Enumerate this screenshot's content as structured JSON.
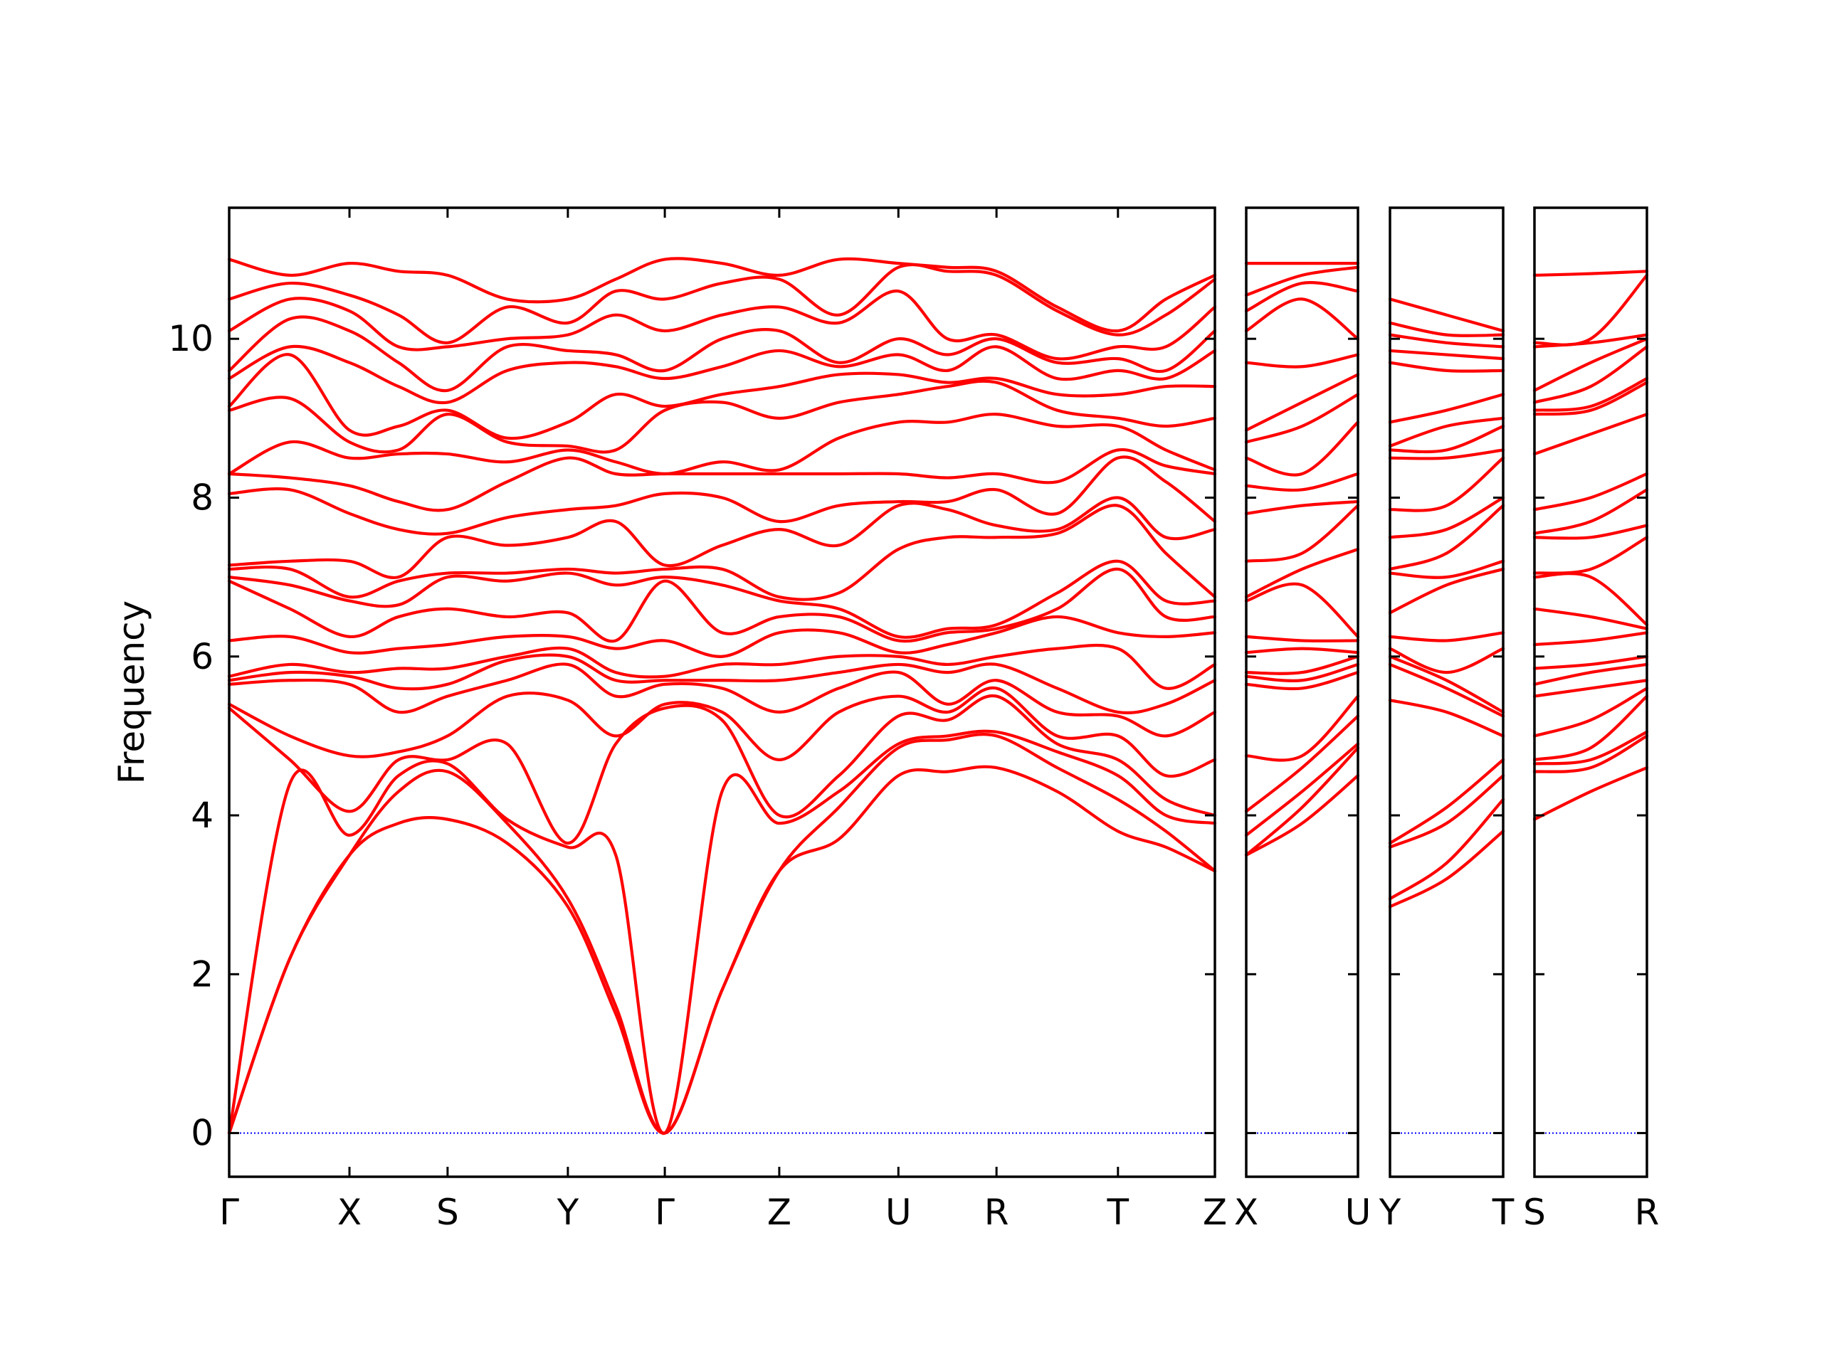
{
  "chart_data": [
    {
      "type": "line",
      "ylabel": "Frequency",
      "color": "#ff0000",
      "xlim": [
        0,
        8.44
      ],
      "ylim": [
        -0.55,
        11.65
      ],
      "yticks": [
        0,
        2,
        4,
        6,
        8,
        10
      ],
      "xticks": [
        {
          "value": 0,
          "label": "Γ"
        },
        {
          "value": 1.03,
          "label": "X"
        },
        {
          "value": 1.87,
          "label": "S"
        },
        {
          "value": 2.9,
          "label": "Y"
        },
        {
          "value": 3.73,
          "label": "Γ"
        },
        {
          "value": 4.71,
          "label": "Z"
        },
        {
          "value": 5.73,
          "label": "U"
        },
        {
          "value": 6.57,
          "label": "R"
        },
        {
          "value": 7.61,
          "label": "T"
        },
        {
          "value": 8.44,
          "label": "Z"
        }
      ],
      "zero_line": {
        "value": 0,
        "color": "#0000ff"
      },
      "x": [
        0,
        0.52,
        1.03,
        1.45,
        1.87,
        2.38,
        2.9,
        3.31,
        3.73,
        4.22,
        4.71,
        5.22,
        5.73,
        6.15,
        6.57,
        7.09,
        7.61,
        8.02,
        8.44
      ],
      "series": [
        {
          "values": [
            0,
            2.2,
            3.5,
            3.9,
            3.95,
            3.65,
            2.85,
            1.5,
            0,
            1.8,
            3.3,
            3.7,
            4.5,
            4.55,
            4.6,
            4.3,
            3.8,
            3.6,
            3.3
          ]
        },
        {
          "values": [
            0,
            2.2,
            3.5,
            4.3,
            4.55,
            3.9,
            2.95,
            1.6,
            0,
            1.8,
            3.3,
            4.1,
            4.85,
            4.95,
            5.0,
            4.6,
            4.2,
            3.8,
            3.3
          ]
        },
        {
          "values": [
            0,
            4.4,
            3.75,
            4.5,
            4.65,
            3.95,
            3.6,
            3.5,
            0,
            4.3,
            3.9,
            4.3,
            4.9,
            5.0,
            5.05,
            4.8,
            4.5,
            4.0,
            3.9
          ]
        },
        {
          "values": [
            5.35,
            4.7,
            4.05,
            4.7,
            4.7,
            4.9,
            3.65,
            4.9,
            5.35,
            5.2,
            4.0,
            4.5,
            5.25,
            5.2,
            5.5,
            4.9,
            4.7,
            4.2,
            4.0
          ]
        },
        {
          "values": [
            5.4,
            5.0,
            4.75,
            4.8,
            5.0,
            5.5,
            5.45,
            5.0,
            5.4,
            5.3,
            4.7,
            5.3,
            5.5,
            5.3,
            5.6,
            5.0,
            5.0,
            4.5,
            4.7
          ]
        },
        {
          "values": [
            5.65,
            5.7,
            5.65,
            5.3,
            5.5,
            5.7,
            5.9,
            5.5,
            5.65,
            5.6,
            5.3,
            5.6,
            5.8,
            5.4,
            5.7,
            5.3,
            5.25,
            5.0,
            5.3
          ]
        },
        {
          "values": [
            5.7,
            5.8,
            5.75,
            5.6,
            5.65,
            5.95,
            6.0,
            5.7,
            5.7,
            5.7,
            5.7,
            5.8,
            5.9,
            5.8,
            5.9,
            5.6,
            5.3,
            5.4,
            5.7
          ]
        },
        {
          "values": [
            5.75,
            5.9,
            5.8,
            5.85,
            5.85,
            6.0,
            6.1,
            5.8,
            5.75,
            5.9,
            5.9,
            6.0,
            6.0,
            5.9,
            6.0,
            6.1,
            6.1,
            5.6,
            5.9
          ]
        },
        {
          "values": [
            6.2,
            6.25,
            6.05,
            6.1,
            6.15,
            6.25,
            6.25,
            6.1,
            6.2,
            6.0,
            6.3,
            6.3,
            6.05,
            6.15,
            6.3,
            6.5,
            6.3,
            6.25,
            6.3
          ]
        },
        {
          "values": [
            6.95,
            6.6,
            6.25,
            6.5,
            6.6,
            6.5,
            6.55,
            6.2,
            6.95,
            6.3,
            6.5,
            6.5,
            6.2,
            6.3,
            6.35,
            6.6,
            7.1,
            6.5,
            6.5
          ]
        },
        {
          "values": [
            7.0,
            6.9,
            6.7,
            6.65,
            7.0,
            6.95,
            7.05,
            6.9,
            7.0,
            6.9,
            6.7,
            6.6,
            6.25,
            6.35,
            6.4,
            6.8,
            7.2,
            6.7,
            6.7
          ]
        },
        {
          "values": [
            7.1,
            7.1,
            6.75,
            6.95,
            7.05,
            7.05,
            7.1,
            7.05,
            7.1,
            7.1,
            6.75,
            6.8,
            7.35,
            7.5,
            7.5,
            7.55,
            7.9,
            7.3,
            6.75
          ]
        },
        {
          "values": [
            7.15,
            7.2,
            7.2,
            7.0,
            7.5,
            7.4,
            7.5,
            7.7,
            7.15,
            7.4,
            7.6,
            7.4,
            7.9,
            7.85,
            7.65,
            7.6,
            8.0,
            7.5,
            7.6
          ]
        },
        {
          "values": [
            8.05,
            8.1,
            7.8,
            7.6,
            7.55,
            7.75,
            7.85,
            7.9,
            8.05,
            8.0,
            7.7,
            7.9,
            7.95,
            7.95,
            8.1,
            7.8,
            8.5,
            8.2,
            7.7
          ]
        },
        {
          "values": [
            8.3,
            8.25,
            8.15,
            7.95,
            7.85,
            8.2,
            8.5,
            8.3,
            8.3,
            8.3,
            8.3,
            8.3,
            8.3,
            8.25,
            8.3,
            8.2,
            8.6,
            8.4,
            8.3
          ]
        },
        {
          "values": [
            8.3,
            8.7,
            8.5,
            8.55,
            8.55,
            8.45,
            8.6,
            8.45,
            8.3,
            8.45,
            8.35,
            8.75,
            8.95,
            8.95,
            9.05,
            8.9,
            8.9,
            8.6,
            8.35
          ]
        },
        {
          "values": [
            9.1,
            9.25,
            8.7,
            8.6,
            9.05,
            8.7,
            8.65,
            8.6,
            9.1,
            9.2,
            9.0,
            9.2,
            9.3,
            9.4,
            9.45,
            9.1,
            9.0,
            8.9,
            9.0
          ]
        },
        {
          "values": [
            9.15,
            9.8,
            8.85,
            8.9,
            9.1,
            8.75,
            8.95,
            9.3,
            9.15,
            9.3,
            9.4,
            9.55,
            9.55,
            9.45,
            9.5,
            9.3,
            9.3,
            9.4,
            9.4
          ]
        },
        {
          "values": [
            9.5,
            9.9,
            9.7,
            9.4,
            9.2,
            9.6,
            9.7,
            9.65,
            9.5,
            9.65,
            9.85,
            9.65,
            9.8,
            9.6,
            9.9,
            9.5,
            9.6,
            9.5,
            9.85
          ]
        },
        {
          "values": [
            9.6,
            10.25,
            10.1,
            9.7,
            9.35,
            9.9,
            9.85,
            9.8,
            9.6,
            10.0,
            10.1,
            9.7,
            10.0,
            9.8,
            10.0,
            9.7,
            9.75,
            9.6,
            10.1
          ]
        },
        {
          "values": [
            10.1,
            10.5,
            10.35,
            9.9,
            9.9,
            10.0,
            10.05,
            10.3,
            10.1,
            10.3,
            10.4,
            10.2,
            10.6,
            10.0,
            10.05,
            9.75,
            9.9,
            9.9,
            10.4
          ]
        },
        {
          "values": [
            10.5,
            10.7,
            10.55,
            10.3,
            9.95,
            10.4,
            10.2,
            10.6,
            10.5,
            10.7,
            10.75,
            10.3,
            10.9,
            10.85,
            10.8,
            10.35,
            10.05,
            10.3,
            10.75
          ]
        },
        {
          "values": [
            11.0,
            10.8,
            10.95,
            10.85,
            10.8,
            10.5,
            10.5,
            10.75,
            11.0,
            10.95,
            10.8,
            11.0,
            10.95,
            10.9,
            10.85,
            10.4,
            10.1,
            10.5,
            10.8
          ]
        }
      ]
    },
    {
      "type": "line",
      "color": "#ff0000",
      "xlim": [
        0,
        0.96
      ],
      "ylim": [
        -0.55,
        11.65
      ],
      "yticks": [
        0,
        2,
        4,
        6,
        8,
        10
      ],
      "xticks": [
        {
          "value": 0,
          "label": "X"
        },
        {
          "value": 0.96,
          "label": "U"
        }
      ],
      "zero_line": {
        "value": 0,
        "color": "#0000ff"
      },
      "x": [
        0,
        0.48,
        0.96
      ],
      "series": [
        {
          "values": [
            3.5,
            3.9,
            4.5
          ]
        },
        {
          "values": [
            3.5,
            4.1,
            4.85
          ]
        },
        {
          "values": [
            3.75,
            4.3,
            4.9
          ]
        },
        {
          "values": [
            4.05,
            4.6,
            5.25
          ]
        },
        {
          "values": [
            4.75,
            4.75,
            5.5
          ]
        },
        {
          "values": [
            5.65,
            5.6,
            5.8
          ]
        },
        {
          "values": [
            5.75,
            5.7,
            5.9
          ]
        },
        {
          "values": [
            5.8,
            5.8,
            6.0
          ]
        },
        {
          "values": [
            6.05,
            6.1,
            6.05
          ]
        },
        {
          "values": [
            6.25,
            6.2,
            6.2
          ]
        },
        {
          "values": [
            6.7,
            6.9,
            6.25
          ]
        },
        {
          "values": [
            6.75,
            7.1,
            7.35
          ]
        },
        {
          "values": [
            7.2,
            7.3,
            7.9
          ]
        },
        {
          "values": [
            7.8,
            7.9,
            7.95
          ]
        },
        {
          "values": [
            8.15,
            8.1,
            8.3
          ]
        },
        {
          "values": [
            8.5,
            8.3,
            8.95
          ]
        },
        {
          "values": [
            8.7,
            8.9,
            9.3
          ]
        },
        {
          "values": [
            8.85,
            9.2,
            9.55
          ]
        },
        {
          "values": [
            9.7,
            9.65,
            9.8
          ]
        },
        {
          "values": [
            10.1,
            10.5,
            10.0
          ]
        },
        {
          "values": [
            10.35,
            10.7,
            10.6
          ]
        },
        {
          "values": [
            10.55,
            10.8,
            10.9
          ]
        },
        {
          "values": [
            10.95,
            10.95,
            10.95
          ]
        }
      ]
    },
    {
      "type": "line",
      "color": "#ff0000",
      "xlim": [
        0,
        0.97
      ],
      "ylim": [
        -0.55,
        11.65
      ],
      "yticks": [
        0,
        2,
        4,
        6,
        8,
        10
      ],
      "xticks": [
        {
          "value": 0,
          "label": "Y"
        },
        {
          "value": 0.97,
          "label": "T"
        }
      ],
      "zero_line": {
        "value": 0,
        "color": "#0000ff"
      },
      "x": [
        0,
        0.485,
        0.97
      ],
      "series": [
        {
          "values": [
            2.85,
            3.2,
            3.8
          ]
        },
        {
          "values": [
            2.95,
            3.4,
            4.2
          ]
        },
        {
          "values": [
            3.6,
            3.9,
            4.5
          ]
        },
        {
          "values": [
            3.65,
            4.1,
            4.7
          ]
        },
        {
          "values": [
            5.45,
            5.3,
            5.0
          ]
        },
        {
          "values": [
            5.9,
            5.6,
            5.25
          ]
        },
        {
          "values": [
            6.0,
            5.7,
            5.3
          ]
        },
        {
          "values": [
            6.1,
            5.8,
            6.1
          ]
        },
        {
          "values": [
            6.25,
            6.2,
            6.3
          ]
        },
        {
          "values": [
            6.55,
            6.9,
            7.1
          ]
        },
        {
          "values": [
            7.05,
            7.0,
            7.2
          ]
        },
        {
          "values": [
            7.1,
            7.3,
            7.9
          ]
        },
        {
          "values": [
            7.5,
            7.6,
            8.0
          ]
        },
        {
          "values": [
            7.85,
            7.9,
            8.5
          ]
        },
        {
          "values": [
            8.5,
            8.5,
            8.6
          ]
        },
        {
          "values": [
            8.6,
            8.6,
            8.9
          ]
        },
        {
          "values": [
            8.65,
            8.9,
            9.0
          ]
        },
        {
          "values": [
            8.95,
            9.1,
            9.3
          ]
        },
        {
          "values": [
            9.7,
            9.6,
            9.6
          ]
        },
        {
          "values": [
            9.85,
            9.8,
            9.75
          ]
        },
        {
          "values": [
            10.05,
            9.95,
            9.9
          ]
        },
        {
          "values": [
            10.2,
            10.05,
            10.05
          ]
        },
        {
          "values": [
            10.5,
            10.3,
            10.1
          ]
        }
      ]
    },
    {
      "type": "line",
      "color": "#ff0000",
      "xlim": [
        0,
        0.96
      ],
      "ylim": [
        -0.55,
        11.65
      ],
      "yticks": [
        0,
        2,
        4,
        6,
        8,
        10
      ],
      "xticks": [
        {
          "value": 0,
          "label": "S"
        },
        {
          "value": 0.96,
          "label": "R"
        }
      ],
      "zero_line": {
        "value": 0,
        "color": "#0000ff"
      },
      "x": [
        0,
        0.48,
        0.96
      ],
      "series": [
        {
          "values": [
            3.95,
            4.3,
            4.6
          ]
        },
        {
          "values": [
            4.55,
            4.6,
            5.0
          ]
        },
        {
          "values": [
            4.65,
            4.7,
            5.05
          ]
        },
        {
          "values": [
            4.7,
            4.85,
            5.5
          ]
        },
        {
          "values": [
            5.0,
            5.2,
            5.6
          ]
        },
        {
          "values": [
            5.5,
            5.6,
            5.7
          ]
        },
        {
          "values": [
            5.65,
            5.8,
            5.9
          ]
        },
        {
          "values": [
            5.85,
            5.9,
            6.0
          ]
        },
        {
          "values": [
            6.15,
            6.2,
            6.3
          ]
        },
        {
          "values": [
            6.6,
            6.5,
            6.35
          ]
        },
        {
          "values": [
            7.0,
            7.0,
            6.4
          ]
        },
        {
          "values": [
            7.05,
            7.1,
            7.5
          ]
        },
        {
          "values": [
            7.5,
            7.5,
            7.65
          ]
        },
        {
          "values": [
            7.55,
            7.7,
            8.1
          ]
        },
        {
          "values": [
            7.85,
            8.0,
            8.3
          ]
        },
        {
          "values": [
            8.55,
            8.8,
            9.05
          ]
        },
        {
          "values": [
            9.05,
            9.1,
            9.45
          ]
        },
        {
          "values": [
            9.1,
            9.15,
            9.5
          ]
        },
        {
          "values": [
            9.2,
            9.4,
            9.9
          ]
        },
        {
          "values": [
            9.35,
            9.7,
            10.0
          ]
        },
        {
          "values": [
            9.9,
            9.95,
            10.05
          ]
        },
        {
          "values": [
            9.95,
            10.0,
            10.8
          ]
        },
        {
          "values": [
            10.8,
            10.82,
            10.85
          ]
        }
      ]
    }
  ]
}
